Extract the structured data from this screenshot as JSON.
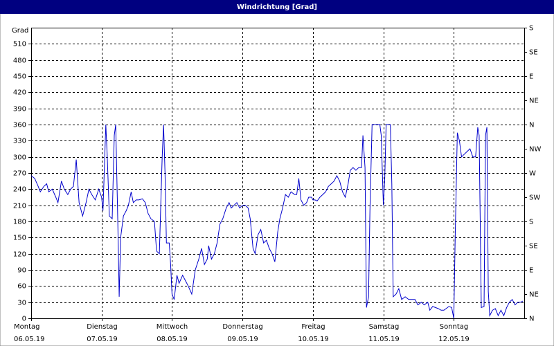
{
  "chart_data": {
    "type": "line",
    "title": "Windrichtung [Grad]",
    "ylabel": "Grad",
    "color": "#0000cc",
    "grid": true,
    "xlim": [
      0,
      7
    ],
    "xticks": [
      {
        "value": 0,
        "label": "Montag"
      },
      {
        "value": 1,
        "label": "Dienstag"
      },
      {
        "value": 2,
        "label": "Mittwoch"
      },
      {
        "value": 3,
        "label": "Donnerstag"
      },
      {
        "value": 4,
        "label": "Freitag"
      },
      {
        "value": 5,
        "label": "Samstag"
      },
      {
        "value": 6,
        "label": "Sonntag"
      }
    ],
    "xtick_dates": [
      "06.05.19",
      "07.05.19",
      "08.05.19",
      "09.05.19",
      "10.05.19",
      "11.05.19",
      "12.05.19"
    ],
    "ylim": [
      0,
      540
    ],
    "yticks": [
      0,
      30,
      60,
      90,
      120,
      150,
      180,
      210,
      240,
      270,
      300,
      330,
      360,
      390,
      420,
      450,
      480,
      510
    ],
    "y2lim": [
      0,
      540
    ],
    "y2ticks": [
      {
        "value": 0,
        "label": "N"
      },
      {
        "value": 45,
        "label": "NE"
      },
      {
        "value": 90,
        "label": "E"
      },
      {
        "value": 135,
        "label": "SE"
      },
      {
        "value": 180,
        "label": "S"
      },
      {
        "value": 225,
        "label": "SW"
      },
      {
        "value": 270,
        "label": "W"
      },
      {
        "value": 315,
        "label": "NW"
      },
      {
        "value": 360,
        "label": "N"
      },
      {
        "value": 405,
        "label": "NE"
      },
      {
        "value": 450,
        "label": "E"
      },
      {
        "value": 495,
        "label": "SE"
      },
      {
        "value": 540,
        "label": "S"
      }
    ],
    "x": [
      0,
      0.05,
      0.1,
      0.13,
      0.18,
      0.22,
      0.25,
      0.3,
      0.35,
      0.38,
      0.43,
      0.47,
      0.52,
      0.56,
      0.6,
      0.64,
      0.68,
      0.73,
      0.78,
      0.82,
      0.86,
      0.91,
      0.96,
      1.0,
      1.02,
      1.06,
      1.08,
      1.11,
      1.15,
      1.18,
      1.2,
      1.23,
      1.25,
      1.27,
      1.31,
      1.35,
      1.38,
      1.42,
      1.45,
      1.49,
      1.53,
      1.58,
      1.62,
      1.66,
      1.7,
      1.75,
      1.78,
      1.82,
      1.86,
      1.88,
      1.9,
      1.92,
      1.96,
      1.98,
      2.0,
      2.03,
      2.07,
      2.1,
      2.15,
      2.19,
      2.23,
      2.28,
      2.33,
      2.38,
      2.42,
      2.46,
      2.5,
      2.52,
      2.56,
      2.6,
      2.64,
      2.68,
      2.72,
      2.77,
      2.81,
      2.84,
      2.88,
      2.92,
      2.96,
      3.0,
      3.04,
      3.08,
      3.11,
      3.15,
      3.18,
      3.22,
      3.26,
      3.3,
      3.34,
      3.38,
      3.42,
      3.46,
      3.5,
      3.53,
      3.57,
      3.61,
      3.65,
      3.69,
      3.74,
      3.77,
      3.8,
      3.83,
      3.87,
      3.91,
      3.94,
      3.98,
      4.0,
      4.03,
      4.06,
      4.1,
      4.14,
      4.18,
      4.22,
      4.26,
      4.3,
      4.34,
      4.38,
      4.42,
      4.46,
      4.5,
      4.53,
      4.57,
      4.61,
      4.65,
      4.69,
      4.71,
      4.74,
      4.76,
      4.79,
      4.81,
      4.84,
      4.87,
      4.91,
      4.95,
      4.97,
      5.0,
      5.02,
      5.04,
      5.07,
      5.1,
      5.12,
      5.14,
      5.18,
      5.22,
      5.26,
      5.31,
      5.36,
      5.4,
      5.45,
      5.49,
      5.54,
      5.58,
      5.63,
      5.66,
      5.7,
      5.74,
      5.78,
      5.82,
      5.86,
      5.89,
      5.93,
      5.97,
      6.0,
      6.02,
      6.05,
      6.08,
      6.11,
      6.15,
      6.19,
      6.23,
      6.27,
      6.31,
      6.34,
      6.36,
      6.39,
      6.43,
      6.45,
      6.47,
      6.49,
      6.51,
      6.55,
      6.59,
      6.63,
      6.67,
      6.71,
      6.75,
      6.79,
      6.83,
      6.87,
      6.91,
      6.95,
      6.98
    ],
    "values": [
      265,
      260,
      245,
      235,
      245,
      250,
      235,
      240,
      225,
      215,
      255,
      240,
      230,
      240,
      245,
      295,
      215,
      190,
      215,
      240,
      230,
      220,
      240,
      225,
      200,
      360,
      300,
      190,
      185,
      340,
      360,
      180,
      40,
      150,
      190,
      200,
      210,
      235,
      215,
      220,
      220,
      222,
      215,
      195,
      185,
      180,
      125,
      120,
      300,
      360,
      270,
      140,
      140,
      100,
      45,
      35,
      80,
      65,
      80,
      70,
      60,
      45,
      90,
      110,
      130,
      100,
      110,
      135,
      110,
      120,
      140,
      175,
      185,
      205,
      215,
      205,
      210,
      215,
      205,
      210,
      210,
      205,
      185,
      130,
      120,
      155,
      165,
      140,
      145,
      130,
      120,
      105,
      160,
      185,
      205,
      230,
      225,
      235,
      230,
      230,
      260,
      220,
      210,
      215,
      225,
      225,
      220,
      220,
      218,
      225,
      230,
      235,
      245,
      250,
      255,
      265,
      255,
      235,
      225,
      250,
      275,
      280,
      275,
      280,
      280,
      340,
      280,
      20,
      40,
      200,
      360,
      360,
      360,
      360,
      340,
      210,
      260,
      360,
      360,
      360,
      250,
      40,
      45,
      55,
      35,
      40,
      35,
      35,
      35,
      25,
      30,
      25,
      30,
      15,
      22,
      20,
      18,
      15,
      15,
      18,
      22,
      20,
      0,
      150,
      345,
      330,
      300,
      305,
      310,
      315,
      300,
      300,
      355,
      340,
      20,
      22,
      340,
      355,
      50,
      5,
      15,
      18,
      5,
      15,
      5,
      20,
      30,
      35,
      25,
      30,
      30,
      32
    ]
  }
}
